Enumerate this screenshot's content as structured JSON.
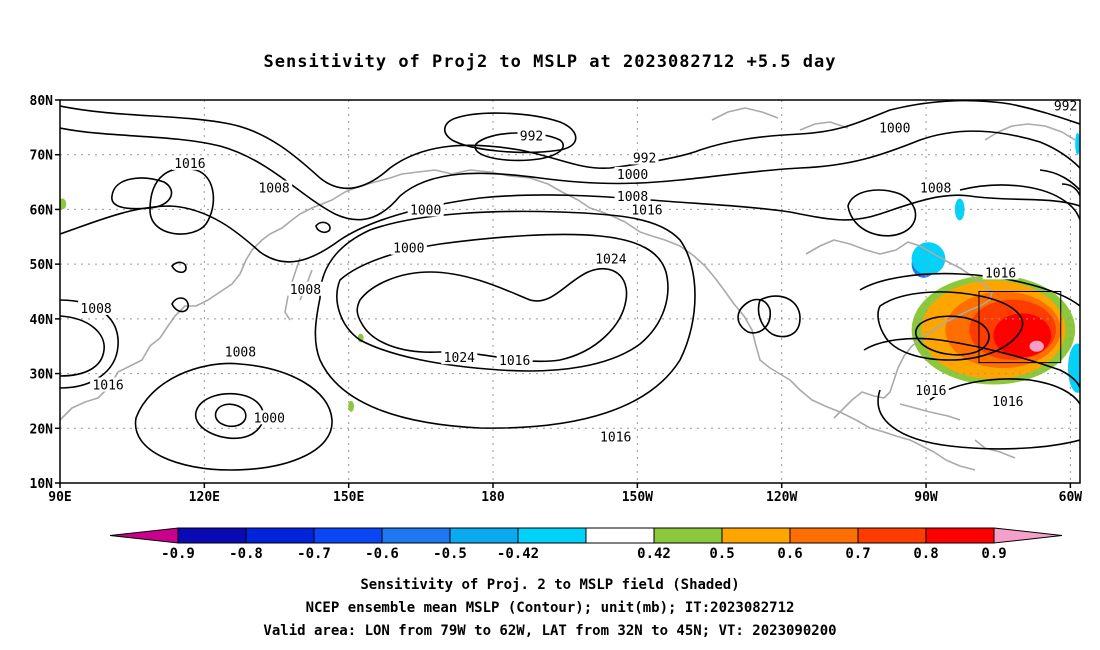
{
  "title": "Sensitivity of Proj2 to MSLP at 2023082712 +5.5 day",
  "axes": {
    "y_ticks": [
      "10N",
      "20N",
      "30N",
      "40N",
      "50N",
      "60N",
      "70N",
      "80N"
    ],
    "x_ticks": [
      "90E",
      "120E",
      "150E",
      "180",
      "150W",
      "120W",
      "90W",
      "60W"
    ],
    "lon_range_east": [
      90,
      302
    ],
    "lat_range": [
      10,
      80
    ]
  },
  "colorbar": {
    "labels": [
      "-0.9",
      "-0.8",
      "-0.7",
      "-0.6",
      "-0.5",
      "-0.42",
      "0.42",
      "0.5",
      "0.6",
      "0.7",
      "0.8",
      "0.9"
    ],
    "colors": [
      "#c8008c",
      "#0a0ab4",
      "#0023dc",
      "#0a46f5",
      "#1e78f0",
      "#0aaaf0",
      "#00d2fa",
      "#ffffff",
      "#8cc83c",
      "#ffa500",
      "#ff6e00",
      "#ff3c00",
      "#ff0000",
      "#f5a0c8"
    ]
  },
  "footnotes": [
    "Sensitivity of Proj. 2 to MSLP field (Shaded)",
    "NCEP ensemble mean MSLP (Contour); unit(mb); IT:2023082712",
    "Valid area: LON from 79W to 62W, LAT from 32N to 45N; VT: 2023090200"
  ],
  "contour_labels": [
    {
      "text": "992",
      "lon": 188,
      "lat": 73.5
    },
    {
      "text": "992",
      "lon": 211.5,
      "lat": 69.5
    },
    {
      "text": "992",
      "lon": 299,
      "lat": 79
    },
    {
      "text": "1000",
      "lon": 263.5,
      "lat": 75
    },
    {
      "text": "1000",
      "lon": 209,
      "lat": 66.5
    },
    {
      "text": "1000",
      "lon": 166,
      "lat": 60
    },
    {
      "text": "1000",
      "lon": 162.5,
      "lat": 53
    },
    {
      "text": "1000",
      "lon": 133.5,
      "lat": 22
    },
    {
      "text": "1008",
      "lon": 134.5,
      "lat": 64
    },
    {
      "text": "1008",
      "lon": 209,
      "lat": 62.5
    },
    {
      "text": "1008",
      "lon": 272,
      "lat": 64
    },
    {
      "text": "1008",
      "lon": 141,
      "lat": 45.5
    },
    {
      "text": "1008",
      "lon": 97.5,
      "lat": 42
    },
    {
      "text": "1008",
      "lon": 127.5,
      "lat": 34
    },
    {
      "text": "1016",
      "lon": 117,
      "lat": 68.5
    },
    {
      "text": "1016",
      "lon": 212,
      "lat": 60
    },
    {
      "text": "1016",
      "lon": 285.5,
      "lat": 48.5
    },
    {
      "text": "1016",
      "lon": 100,
      "lat": 28
    },
    {
      "text": "1016",
      "lon": 184.5,
      "lat": 32.5
    },
    {
      "text": "1016",
      "lon": 205.5,
      "lat": 18.5
    },
    {
      "text": "1016",
      "lon": 271,
      "lat": 27
    },
    {
      "text": "1016",
      "lon": 287,
      "lat": 25
    },
    {
      "text": "1024",
      "lon": 204.5,
      "lat": 51
    },
    {
      "text": "1024",
      "lon": 173,
      "lat": 33
    }
  ],
  "shaded_features": [
    {
      "level": "0.5",
      "color": "#8cc83c",
      "lon": 284,
      "lat": 38,
      "rx_deg": 17,
      "ry_deg": 10
    },
    {
      "level": "0.6",
      "color": "#ffa500",
      "lon": 284,
      "lat": 38,
      "rx_deg": 15,
      "ry_deg": 9
    },
    {
      "level": "0.7",
      "color": "#ff6e00",
      "lon": 286,
      "lat": 38,
      "rx_deg": 12,
      "ry_deg": 7
    },
    {
      "level": "0.8",
      "color": "#ff3c00",
      "lon": 288,
      "lat": 38,
      "rx_deg": 9,
      "ry_deg": 5.5
    },
    {
      "level": "0.9",
      "color": "#ff0000",
      "lon": 290,
      "lat": 37,
      "rx_deg": 6,
      "ry_deg": 4
    },
    {
      "level": ">0.9",
      "color": "#f5a0c8",
      "lon": 293,
      "lat": 35,
      "rx_deg": 1.5,
      "ry_deg": 1
    },
    {
      "level": "-0.5",
      "color": "#1e78f0",
      "lon": 269.5,
      "lat": 50,
      "rx_deg": 2.5,
      "ry_deg": 2.5
    },
    {
      "level": "-0.42",
      "color": "#00d2fa",
      "lon": 270.5,
      "lat": 51,
      "rx_deg": 3.5,
      "ry_deg": 3
    },
    {
      "level": "-0.42",
      "color": "#00d2fa",
      "lon": 277,
      "lat": 60,
      "rx_deg": 1,
      "ry_deg": 2
    },
    {
      "level": "-0.42",
      "color": "#00d2fa",
      "lon": 301.5,
      "lat": 31,
      "rx_deg": 2,
      "ry_deg": 4.5
    },
    {
      "level": "-0.42",
      "color": "#00d2fa",
      "lon": 301.5,
      "lat": 72,
      "rx_deg": 0.5,
      "ry_deg": 2
    },
    {
      "level": "0.5",
      "color": "#8cc83c",
      "lon": 133.5,
      "lat": 64,
      "rx_deg": 0.8,
      "ry_deg": 1
    },
    {
      "level": "0.5",
      "color": "#8cc83c",
      "lon": 90.5,
      "lat": 61,
      "rx_deg": 0.8,
      "ry_deg": 1
    },
    {
      "level": "0.5",
      "color": "#8cc83c",
      "lon": 152.5,
      "lat": 36.5,
      "rx_deg": 0.6,
      "ry_deg": 0.8
    },
    {
      "level": "0.5",
      "color": "#8cc83c",
      "lon": 150.5,
      "lat": 24,
      "rx_deg": 0.6,
      "ry_deg": 1
    }
  ],
  "valid_area_box": {
    "lon_west": 281,
    "lon_east": 298,
    "lat_south": 32,
    "lat_north": 45
  },
  "colors": {
    "contour": "#000000",
    "coast": "#aaaaaa",
    "grid": "#999999"
  }
}
